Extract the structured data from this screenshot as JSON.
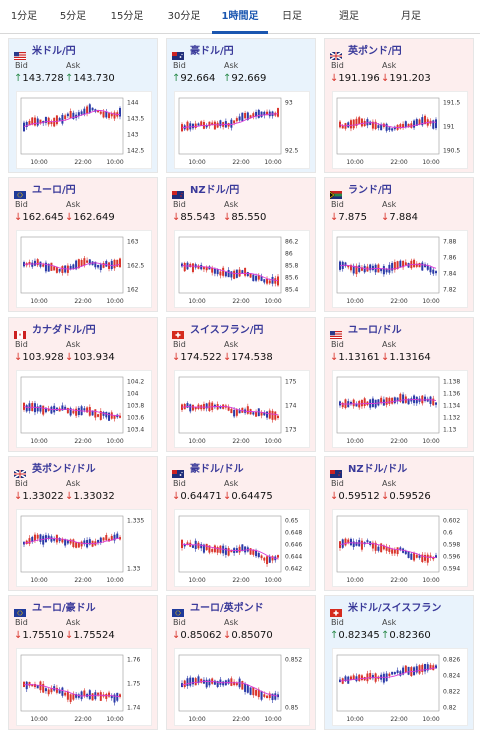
{
  "tabs": [
    {
      "label": "1分足",
      "active": false
    },
    {
      "label": "5分足",
      "active": false
    },
    {
      "label": "15分足",
      "active": false
    },
    {
      "label": "30分足",
      "active": false
    },
    {
      "label": "1時間足",
      "active": true
    },
    {
      "label": "日足",
      "active": false
    },
    {
      "label": "週足",
      "active": false
    },
    {
      "label": "月足",
      "active": false
    }
  ],
  "bid_label": "Bid",
  "ask_label": "Ask",
  "time_labels": [
    "10:00",
    "22:00",
    "10:00"
  ],
  "colors": {
    "up_card": "#e9f3fc",
    "down_card": "#fdeeee",
    "bull": "#d9342b",
    "bear": "#2a3aa8",
    "ma": "#d83ad8",
    "pair_text": "#3a3a9a"
  },
  "cards": [
    {
      "pair": "米ドル/円",
      "flag": "us",
      "direction": "up",
      "bid": "143.728",
      "ask": "143.730",
      "ticks": [
        "144",
        "143.5",
        "143",
        "142.5"
      ]
    },
    {
      "pair": "豪ドル/円",
      "flag": "au",
      "direction": "up",
      "bid": "92.664",
      "ask": "92.669",
      "ticks": [
        "93",
        "92.5"
      ]
    },
    {
      "pair": "英ポンド/円",
      "flag": "gb",
      "direction": "down",
      "bid": "191.196",
      "ask": "191.203",
      "ticks": [
        "191.5",
        "191",
        "190.5"
      ]
    },
    {
      "pair": "ユーロ/円",
      "flag": "eu",
      "direction": "down",
      "bid": "162.645",
      "ask": "162.649",
      "ticks": [
        "163",
        "162.5",
        "162"
      ]
    },
    {
      "pair": "NZドル/円",
      "flag": "nz",
      "direction": "down",
      "bid": "85.543",
      "ask": "85.550",
      "ticks": [
        "86.2",
        "86",
        "85.8",
        "85.6",
        "85.4"
      ]
    },
    {
      "pair": "ランド/円",
      "flag": "za",
      "direction": "down",
      "bid": "7.875",
      "ask": "7.884",
      "ticks": [
        "7.88",
        "7.86",
        "7.84",
        "7.82"
      ]
    },
    {
      "pair": "カナダドル/円",
      "flag": "ca",
      "direction": "down",
      "bid": "103.928",
      "ask": "103.934",
      "ticks": [
        "104.2",
        "104",
        "103.8",
        "103.6",
        "103.4"
      ]
    },
    {
      "pair": "スイスフラン/円",
      "flag": "ch",
      "direction": "down",
      "bid": "174.522",
      "ask": "174.538",
      "ticks": [
        "175",
        "174",
        "173"
      ]
    },
    {
      "pair": "ユーロ/ドル",
      "flag": "us",
      "direction": "down",
      "bid": "1.13161",
      "ask": "1.13164",
      "ticks": [
        "1.138",
        "1.136",
        "1.134",
        "1.132",
        "1.13"
      ]
    },
    {
      "pair": "英ポンド/ドル",
      "flag": "gb",
      "direction": "down",
      "bid": "1.33022",
      "ask": "1.33032",
      "ticks": [
        "1.335",
        "1.33"
      ]
    },
    {
      "pair": "豪ドル/ドル",
      "flag": "au",
      "direction": "down",
      "bid": "0.64471",
      "ask": "0.64475",
      "ticks": [
        "0.65",
        "0.648",
        "0.646",
        "0.644",
        "0.642"
      ]
    },
    {
      "pair": "NZドル/ドル",
      "flag": "nz",
      "direction": "down",
      "bid": "0.59512",
      "ask": "0.59526",
      "ticks": [
        "0.602",
        "0.6",
        "0.598",
        "0.596",
        "0.594"
      ]
    },
    {
      "pair": "ユーロ/豪ドル",
      "flag": "eu",
      "direction": "down",
      "bid": "1.75510",
      "ask": "1.75524",
      "ticks": [
        "1.76",
        "1.75",
        "1.74"
      ]
    },
    {
      "pair": "ユーロ/英ポンド",
      "flag": "eu",
      "direction": "down",
      "bid": "0.85062",
      "ask": "0.85070",
      "ticks": [
        "0.852",
        "0.85"
      ]
    },
    {
      "pair": "米ドル/スイスフラン",
      "flag": "ch",
      "direction": "up",
      "bid": "0.82345",
      "ask": "0.82360",
      "ticks": [
        "0.826",
        "0.824",
        "0.822",
        "0.82"
      ]
    }
  ]
}
